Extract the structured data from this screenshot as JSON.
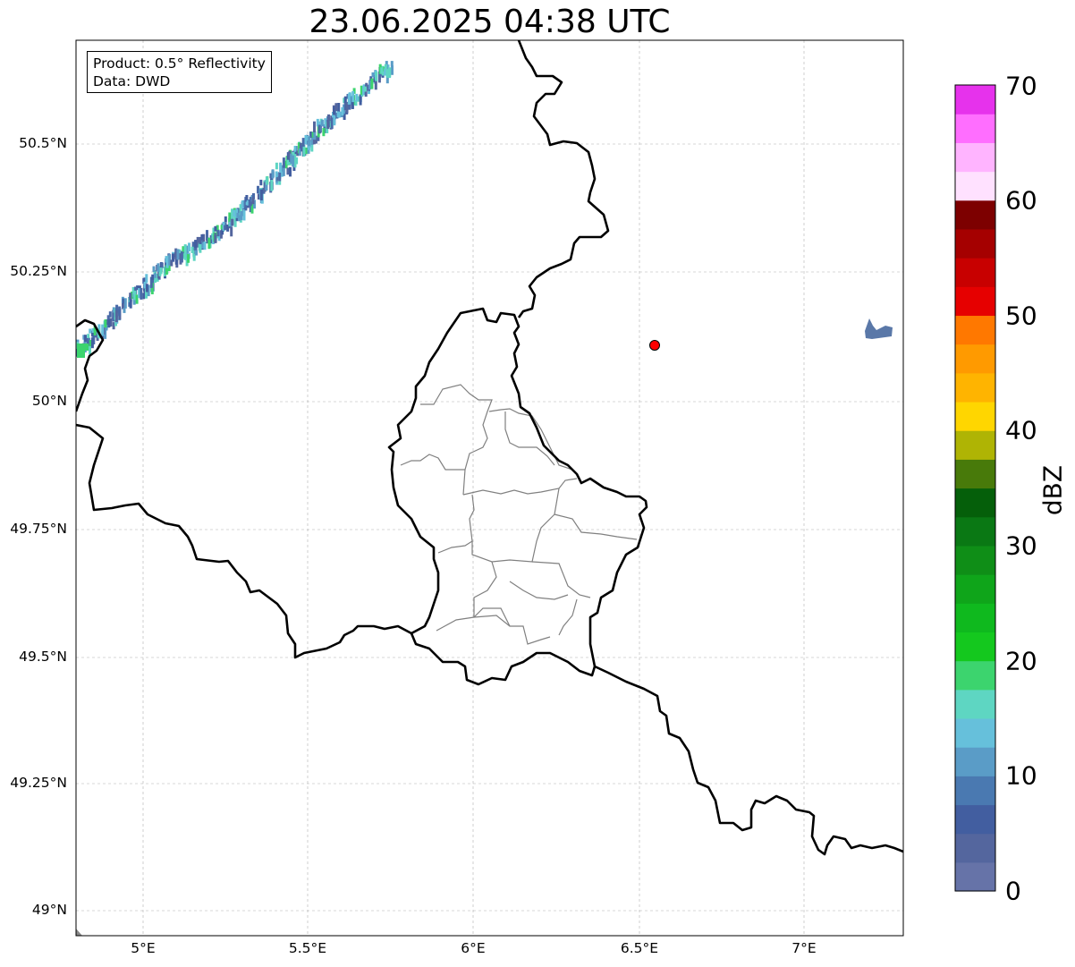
{
  "title": "23.06.2025 04:38 UTC",
  "info": {
    "product": "Product: 0.5° Reflectivity",
    "data": "Data: DWD"
  },
  "axes": {
    "lat_ticks": [
      "50.5°N",
      "50.25°N",
      "50°N",
      "49.75°N",
      "49.5°N",
      "49.25°N",
      "49°N"
    ],
    "lon_ticks": [
      "5°E",
      "5.5°E",
      "6°E",
      "6.5°E",
      "7°E"
    ]
  },
  "colorbar": {
    "label": "dBZ",
    "min": 0,
    "max": 70,
    "ticks": [
      "0",
      "10",
      "20",
      "30",
      "40",
      "50",
      "60",
      "70"
    ],
    "colors": [
      "#6673a8",
      "#54669e",
      "#425ea0",
      "#4a79b1",
      "#5a9cc7",
      "#66c0db",
      "#5ed6c2",
      "#3cd46e",
      "#14c81e",
      "#0fb91e",
      "#0fa51a",
      "#0f8e17",
      "#0a7814",
      "#055f0a",
      "#487a0a",
      "#afb404",
      "#ffd600",
      "#ffb400",
      "#ff9a00",
      "#ff7800",
      "#e60000",
      "#c80000",
      "#a50000",
      "#7d0000",
      "#ffe1ff",
      "#ffb4ff",
      "#ff6eff",
      "#e632ec"
    ]
  },
  "colors": {
    "border": "#000000",
    "canton_lines": "#808080",
    "grid": "#b0b0b0",
    "radar_site": "#ff0000"
  },
  "legend_icons": [
    "radar-site-marker"
  ]
}
